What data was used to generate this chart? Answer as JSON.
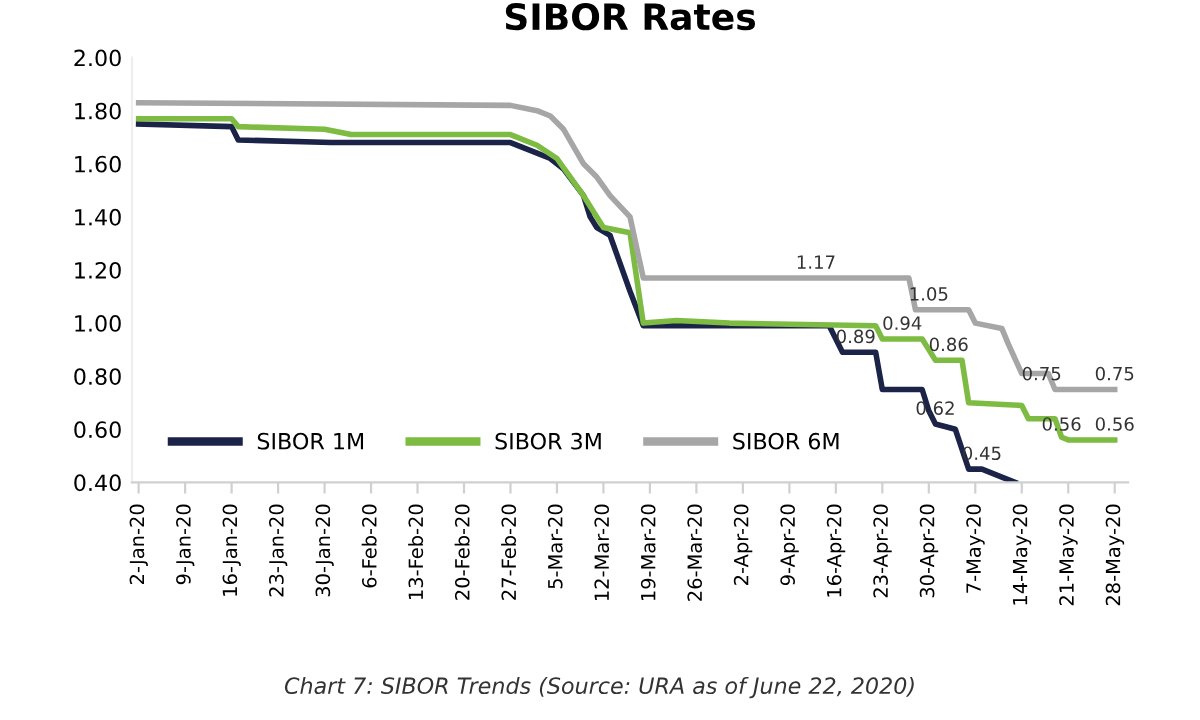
{
  "chart_data": {
    "type": "line",
    "title": "SIBOR Rates",
    "series": [
      {
        "name": "SIBOR 1M",
        "color": "#1b2448",
        "x": [
          "2020-01-02",
          "2020-01-16",
          "2020-01-17",
          "2020-01-31",
          "2020-02-27",
          "2020-03-02",
          "2020-03-04",
          "2020-03-06",
          "2020-03-09",
          "2020-03-10",
          "2020-03-11",
          "2020-03-13",
          "2020-03-16",
          "2020-03-18",
          "2020-03-25",
          "2020-04-15",
          "2020-04-16",
          "2020-04-17",
          "2020-04-22",
          "2020-04-23",
          "2020-04-29",
          "2020-04-30",
          "2020-05-01",
          "2020-05-04",
          "2020-05-06",
          "2020-05-08",
          "2020-05-11",
          "2020-05-13"
        ],
        "values": [
          1.75,
          1.74,
          1.69,
          1.68,
          1.68,
          1.64,
          1.62,
          1.58,
          1.48,
          1.4,
          1.36,
          1.33,
          1.12,
          0.99,
          0.99,
          0.99,
          0.94,
          0.89,
          0.89,
          0.75,
          0.75,
          0.67,
          0.62,
          0.6,
          0.45,
          0.45,
          0.42,
          0.4
        ]
      },
      {
        "name": "SIBOR 3M",
        "color": "#7dbb42",
        "x": [
          "2020-01-02",
          "2020-01-16",
          "2020-01-17",
          "2020-01-30",
          "2020-02-03",
          "2020-02-27",
          "2020-03-02",
          "2020-03-05",
          "2020-03-09",
          "2020-03-11",
          "2020-03-12",
          "2020-03-16",
          "2020-03-18",
          "2020-03-23",
          "2020-03-31",
          "2020-04-22",
          "2020-04-23",
          "2020-04-29",
          "2020-04-30",
          "2020-05-01",
          "2020-05-05",
          "2020-05-06",
          "2020-05-14",
          "2020-05-15",
          "2020-05-19",
          "2020-05-20",
          "2020-05-21",
          "2020-05-28"
        ],
        "values": [
          1.77,
          1.77,
          1.74,
          1.73,
          1.71,
          1.71,
          1.67,
          1.62,
          1.48,
          1.4,
          1.36,
          1.34,
          1.0,
          1.01,
          1.0,
          0.99,
          0.94,
          0.94,
          0.9,
          0.86,
          0.86,
          0.7,
          0.69,
          0.64,
          0.64,
          0.57,
          0.56,
          0.56
        ]
      },
      {
        "name": "SIBOR 6M",
        "color": "#a6a6a6",
        "x": [
          "2020-01-02",
          "2020-02-27",
          "2020-03-02",
          "2020-03-04",
          "2020-03-06",
          "2020-03-09",
          "2020-03-11",
          "2020-03-13",
          "2020-03-16",
          "2020-03-18",
          "2020-04-27",
          "2020-04-28",
          "2020-05-06",
          "2020-05-07",
          "2020-05-11",
          "2020-05-12",
          "2020-05-14",
          "2020-05-18",
          "2020-05-19",
          "2020-05-28"
        ],
        "values": [
          1.83,
          1.82,
          1.8,
          1.78,
          1.73,
          1.6,
          1.55,
          1.48,
          1.4,
          1.17,
          1.17,
          1.05,
          1.05,
          1.0,
          0.98,
          0.92,
          0.81,
          0.81,
          0.75,
          0.75
        ]
      }
    ],
    "ylim": [
      0.4,
      2.0
    ],
    "yticks": [
      {
        "value": 0.4,
        "label": "0.40"
      },
      {
        "value": 0.6,
        "label": "0.60"
      },
      {
        "value": 0.8,
        "label": "0.80"
      },
      {
        "value": 1.0,
        "label": "1.00"
      },
      {
        "value": 1.2,
        "label": "1.20"
      },
      {
        "value": 1.4,
        "label": "1.40"
      },
      {
        "value": 1.6,
        "label": "1.60"
      },
      {
        "value": 1.8,
        "label": "1.80"
      },
      {
        "value": 2.0,
        "label": "2.00"
      }
    ],
    "xlim": [
      "2020-01-01",
      "2020-05-30"
    ],
    "xticks": [
      {
        "value": "2020-01-02",
        "label": "2-Jan-20"
      },
      {
        "value": "2020-01-09",
        "label": "9-Jan-20"
      },
      {
        "value": "2020-01-16",
        "label": "16-Jan-20"
      },
      {
        "value": "2020-01-23",
        "label": "23-Jan-20"
      },
      {
        "value": "2020-01-30",
        "label": "30-Jan-20"
      },
      {
        "value": "2020-02-06",
        "label": "6-Feb-20"
      },
      {
        "value": "2020-02-13",
        "label": "13-Feb-20"
      },
      {
        "value": "2020-02-20",
        "label": "20-Feb-20"
      },
      {
        "value": "2020-02-27",
        "label": "27-Feb-20"
      },
      {
        "value": "2020-03-05",
        "label": "5-Mar-20"
      },
      {
        "value": "2020-03-12",
        "label": "12-Mar-20"
      },
      {
        "value": "2020-03-19",
        "label": "19-Mar-20"
      },
      {
        "value": "2020-03-26",
        "label": "26-Mar-20"
      },
      {
        "value": "2020-04-02",
        "label": "2-Apr-20"
      },
      {
        "value": "2020-04-09",
        "label": "9-Apr-20"
      },
      {
        "value": "2020-04-16",
        "label": "16-Apr-20"
      },
      {
        "value": "2020-04-23",
        "label": "23-Apr-20"
      },
      {
        "value": "2020-04-30",
        "label": "30-Apr-20"
      },
      {
        "value": "2020-05-07",
        "label": "7-May-20"
      },
      {
        "value": "2020-05-14",
        "label": "14-May-20"
      },
      {
        "value": "2020-05-21",
        "label": "21-May-20"
      },
      {
        "value": "2020-05-28",
        "label": "28-May-20"
      }
    ],
    "grid": false,
    "legend": "bottom left",
    "marker": "none",
    "line_style": "solid",
    "annotations": [
      {
        "text": "1.17",
        "x": "2020-04-13",
        "y": 1.17
      },
      {
        "text": "1.05",
        "x": "2020-04-30",
        "y": 1.05
      },
      {
        "text": "0.94",
        "x": "2020-04-26",
        "y": 0.94
      },
      {
        "text": "0.89",
        "x": "2020-04-19",
        "y": 0.89
      },
      {
        "text": "0.86",
        "x": "2020-05-03",
        "y": 0.86
      },
      {
        "text": "0.62",
        "x": "2020-05-01",
        "y": 0.62
      },
      {
        "text": "0.45",
        "x": "2020-05-08",
        "y": 0.45
      },
      {
        "text": "0.75",
        "x": "2020-05-17",
        "y": 0.75
      },
      {
        "text": "0.75",
        "x": "2020-05-28",
        "y": 0.75
      },
      {
        "text": "0.56",
        "x": "2020-05-20",
        "y": 0.56
      },
      {
        "text": "0.56",
        "x": "2020-05-28",
        "y": 0.56
      },
      "Chart 7: SIBOR Trends (Source: URA as of June 22, 2020)"
    ]
  }
}
